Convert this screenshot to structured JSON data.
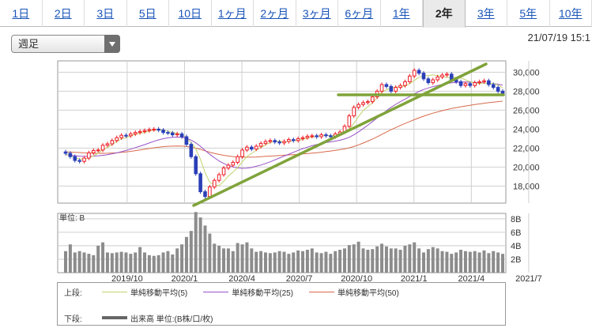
{
  "tabs": [
    {
      "label": "1日",
      "active": false
    },
    {
      "label": "2日",
      "active": false
    },
    {
      "label": "3日",
      "active": false
    },
    {
      "label": "5日",
      "active": false
    },
    {
      "label": "10日",
      "active": false
    },
    {
      "label": "1ヶ月",
      "active": false
    },
    {
      "label": "2ヶ月",
      "active": false
    },
    {
      "label": "3ヶ月",
      "active": false
    },
    {
      "label": "6ヶ月",
      "active": false
    },
    {
      "label": "1年",
      "active": false
    },
    {
      "label": "2年",
      "active": true
    },
    {
      "label": "3年",
      "active": false
    },
    {
      "label": "5年",
      "active": false
    },
    {
      "label": "10年",
      "active": false
    }
  ],
  "select": {
    "value": "週足"
  },
  "timestamp": "21/07/19 15:1",
  "chart_data": {
    "type": "candlestick",
    "price_ticks": [
      "30,000",
      "28,000",
      "26,000",
      "24,000",
      "22,000",
      "20,000",
      "18,000"
    ],
    "price_tick_values": [
      30000,
      28000,
      26000,
      24000,
      22000,
      20000,
      18000
    ],
    "ylim": [
      16200,
      31200
    ],
    "x_labels": [
      "2019/10",
      "2020/1",
      "2020/4",
      "2020/7",
      "2020/10",
      "2021/1",
      "2021/4",
      "2021/7"
    ],
    "volume_unit_label": "単位: B",
    "volume_ticks": [
      "8B",
      "6B",
      "4B",
      "2B"
    ],
    "volume_tick_values": [
      8,
      6,
      4,
      2
    ],
    "volume_ylim": [
      0,
      8.8
    ],
    "close": [
      21450,
      21100,
      20700,
      20600,
      20950,
      21500,
      21750,
      21800,
      22300,
      22450,
      22800,
      23100,
      23350,
      23300,
      23500,
      23650,
      23750,
      23850,
      23950,
      24000,
      23900,
      23650,
      23600,
      23400,
      23500,
      23200,
      22400,
      21100,
      19300,
      17400,
      16900,
      17900,
      18600,
      19200,
      19900,
      20200,
      20500,
      21100,
      21800,
      22100,
      21900,
      22200,
      22500,
      22700,
      22800,
      22650,
      22550,
      22700,
      22900,
      22800,
      23000,
      23100,
      23250,
      23300,
      23200,
      23400,
      23300,
      23200,
      23500,
      23700,
      24300,
      25400,
      26300,
      26600,
      26800,
      26900,
      27400,
      28000,
      28700,
      28500,
      28000,
      28400,
      28600,
      29000,
      29600,
      30200,
      29900,
      29300,
      28900,
      29200,
      29500,
      29700,
      29800,
      29200,
      29000,
      28600,
      28800,
      28600,
      28900,
      29000,
      29100,
      28700,
      28400,
      28000,
      27700
    ],
    "ma5": [
      21350,
      21200,
      21000,
      20850,
      20840,
      20960,
      21190,
      21460,
      21830,
      22070,
      22370,
      22690,
      22980,
      23100,
      23280,
      23460,
      23560,
      23650,
      23790,
      23880,
      23910,
      23890,
      23800,
      23650,
      23570,
      23420,
      23090,
      22610,
      21920,
      20820,
      19410,
      18390,
      18120,
      18040,
      18500,
      19060,
      19470,
      19950,
      20560,
      21120,
      21440,
      21780,
      22060,
      22350,
      22590,
      22690,
      22730,
      22680,
      22700,
      22780,
      22820,
      22910,
      23050,
      23150,
      23210,
      23330,
      23360,
      23300,
      23340,
      23460,
      23620,
      23970,
      24620,
      25330,
      25960,
      26360,
      26780,
      27300,
      27880,
      28160,
      28320,
      28440,
      28480,
      28540,
      28780,
      29140,
      29460,
      29640,
      29640,
      29720,
      29650,
      29540,
      29460,
      29460,
      29460,
      29400,
      29200,
      28980,
      28880,
      28790,
      28860,
      28840,
      28820,
      28660,
      28370
    ],
    "ma25": [
      21300,
      21250,
      21200,
      21150,
      21130,
      21140,
      21160,
      21190,
      21240,
      21310,
      21400,
      21500,
      21620,
      21750,
      21890,
      22050,
      22210,
      22370,
      22540,
      22720,
      22870,
      22990,
      23080,
      23140,
      23170,
      23150,
      23040,
      22840,
      22560,
      22190,
      21760,
      21350,
      20980,
      20650,
      20380,
      20170,
      20020,
      19920,
      19870,
      19880,
      19960,
      20080,
      20220,
      20380,
      20560,
      20760,
      20960,
      21160,
      21360,
      21560,
      21760,
      21940,
      22100,
      22250,
      22380,
      22490,
      22580,
      22660,
      22740,
      22830,
      22960,
      23140,
      23400,
      23720,
      24060,
      24420,
      24800,
      25180,
      25570,
      25950,
      26300,
      26620,
      26900,
      27170,
      27440,
      27720,
      27980,
      28180,
      28340,
      28480,
      28600,
      28710,
      28810,
      28880,
      28930,
      28960,
      28970,
      28960,
      28930,
      28900,
      28870,
      28840,
      28800,
      28740,
      28650
    ],
    "ma50": [
      21600,
      21580,
      21560,
      21530,
      21500,
      21480,
      21460,
      21450,
      21450,
      21460,
      21480,
      21510,
      21550,
      21600,
      21660,
      21730,
      21800,
      21880,
      21960,
      22030,
      22100,
      22150,
      22190,
      22210,
      22220,
      22210,
      22170,
      22100,
      22000,
      21870,
      21720,
      21570,
      21440,
      21330,
      21240,
      21170,
      21110,
      21070,
      21050,
      21040,
      21050,
      21070,
      21100,
      21130,
      21160,
      21190,
      21220,
      21250,
      21280,
      21310,
      21340,
      21380,
      21420,
      21470,
      21520,
      21570,
      21630,
      21690,
      21760,
      21830,
      21920,
      22030,
      22170,
      22340,
      22530,
      22740,
      22960,
      23190,
      23440,
      23690,
      23940,
      24170,
      24390,
      24600,
      24800,
      25000,
      25190,
      25370,
      25530,
      25680,
      25820,
      25950,
      26070,
      26180,
      26270,
      26360,
      26440,
      26520,
      26590,
      26660,
      26730,
      26790,
      26850,
      26900,
      26950
    ],
    "volume": [
      3.2,
      4.2,
      3.0,
      3.2,
      3.0,
      2.8,
      2.6,
      4.0,
      4.5,
      3.0,
      2.9,
      3.0,
      3.1,
      3.0,
      2.8,
      3.0,
      3.8,
      3.0,
      2.6,
      2.5,
      2.6,
      3.0,
      3.2,
      2.7,
      3.6,
      4.2,
      5.3,
      6.2,
      9.0,
      8.2,
      7.0,
      5.8,
      4.3,
      4.0,
      3.6,
      3.6,
      3.2,
      4.4,
      4.2,
      4.5,
      3.6,
      3.1,
      3.2,
      3.0,
      2.9,
      3.0,
      3.2,
      3.1,
      2.8,
      3.0,
      3.3,
      3.2,
      3.4,
      3.6,
      3.0,
      2.9,
      3.1,
      2.8,
      3.2,
      3.4,
      3.6,
      4.1,
      4.2,
      4.6,
      3.6,
      3.4,
      3.5,
      3.9,
      4.3,
      3.9,
      3.6,
      3.6,
      3.4,
      4.0,
      4.2,
      4.5,
      3.6,
      3.0,
      3.5,
      3.8,
      3.6,
      3.2,
      3.1,
      2.8,
      3.0,
      3.4,
      3.2,
      3.1,
      3.2,
      3.0,
      3.3,
      2.9,
      3.2,
      3.0,
      2.8
    ]
  },
  "legend": {
    "upper_label": "上段:",
    "lower_label": "下段:",
    "items": [
      {
        "label": "単純移動平均(5)",
        "color": "#c2d46b"
      },
      {
        "label": "単純移動平均(25)",
        "color": "#9a52c7"
      },
      {
        "label": "単純移動平均(50)",
        "color": "#d86a4c"
      }
    ],
    "volume_item": {
      "label": "出来高 単位:(B株/口/枚)",
      "color": "#666666"
    }
  },
  "colors": {
    "up": "#ee1c25",
    "down": "#2b3fb8",
    "trendline": "#7fa33a",
    "grid": "#cfcfcf",
    "volume": "#8c8c8c"
  }
}
